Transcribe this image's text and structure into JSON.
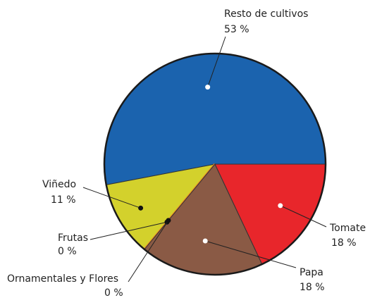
{
  "chart_data": {
    "type": "pie",
    "categories": [
      "Resto de cultivos",
      "Viñedo",
      "Frutas",
      "Ornamentales y Flores",
      "Papa",
      "Tomate"
    ],
    "values": [
      53,
      11,
      0,
      0,
      18,
      18
    ],
    "value_labels": [
      "53 %",
      "11 %",
      "0 %",
      "0 %",
      "18 %",
      "18 %"
    ],
    "colors": [
      "#1b63ae",
      "#d3d12c",
      "#f0a040",
      "#e87f22",
      "#8a5a45",
      "#e8262b"
    ]
  }
}
